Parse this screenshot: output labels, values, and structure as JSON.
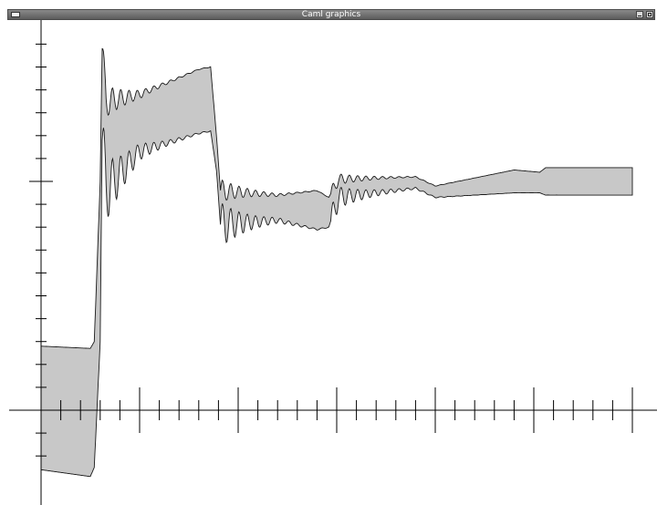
{
  "window": {
    "title": "Caml graphics",
    "icons": {
      "menu": "window-menu-icon",
      "minimize": "minimize-icon",
      "maximize": "maximize-icon"
    }
  },
  "colors": {
    "fill": "#c8c8c8",
    "stroke": "#1a1a1a",
    "axis": "#000000",
    "titlebar": "#6e6e6e"
  },
  "chart_data": {
    "type": "area",
    "title": "",
    "xlabel": "",
    "ylabel": "",
    "grid": false,
    "x_range": [
      0,
      30
    ],
    "y_range": [
      -4,
      17
    ],
    "x_ticks": {
      "minor_step": 1,
      "major_step": 5,
      "max": 30
    },
    "y_ticks": {
      "min": -2,
      "max": 16,
      "minor_step": 1,
      "major_at": [
        0,
        10
      ]
    },
    "envelope": [
      {
        "x": 0.0,
        "upper": 2.8,
        "lower": -2.6
      },
      {
        "x": 2.5,
        "upper": 2.7,
        "lower": -2.9
      },
      {
        "x": 2.7,
        "upper": 3.0,
        "lower": -2.5
      },
      {
        "x": 3.0,
        "upper": 10.0,
        "lower": 3.0
      },
      {
        "x": 3.1,
        "upper": 15.8,
        "lower": 11.8
      },
      {
        "x": 3.3,
        "upper": 13.5,
        "lower": 9.6
      },
      {
        "x": 5.0,
        "upper": 13.8,
        "lower": 11.3
      },
      {
        "x": 8.0,
        "upper": 14.9,
        "lower": 12.1
      },
      {
        "x": 8.6,
        "upper": 15.0,
        "lower": 12.2
      },
      {
        "x": 8.9,
        "upper": 12.0,
        "lower": 10.5
      },
      {
        "x": 9.1,
        "upper": 9.6,
        "lower": 8.1
      },
      {
        "x": 12.0,
        "upper": 9.4,
        "lower": 8.3
      },
      {
        "x": 14.0,
        "upper": 9.6,
        "lower": 7.9
      },
      {
        "x": 14.6,
        "upper": 9.3,
        "lower": 8.0
      },
      {
        "x": 15.1,
        "upper": 10.1,
        "lower": 9.3
      },
      {
        "x": 19.0,
        "upper": 10.2,
        "lower": 9.7
      },
      {
        "x": 20.0,
        "upper": 9.8,
        "lower": 9.3
      },
      {
        "x": 24.0,
        "upper": 10.5,
        "lower": 9.5
      },
      {
        "x": 25.3,
        "upper": 10.4,
        "lower": 9.5
      },
      {
        "x": 25.6,
        "upper": 10.6,
        "lower": 9.4
      },
      {
        "x": 30.0,
        "upper": 10.6,
        "lower": 9.4
      }
    ]
  }
}
